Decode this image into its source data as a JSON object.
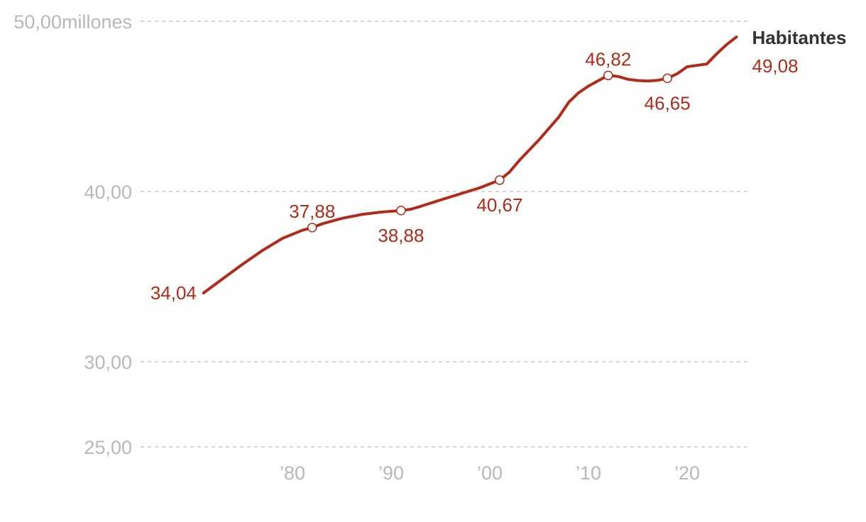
{
  "chart_data": {
    "type": "line",
    "title": "",
    "xlabel": "",
    "ylabel": "millones",
    "y_axis": {
      "ticks": [
        {
          "value": 25,
          "label": "25,00"
        },
        {
          "value": 30,
          "label": "30,00"
        },
        {
          "value": 40,
          "label": "40,00"
        },
        {
          "value": 50,
          "label": "50,00",
          "unit": "millones"
        }
      ],
      "grid": true
    },
    "x_axis": {
      "ticks": [
        {
          "value": 1980,
          "label": "’80"
        },
        {
          "value": 1990,
          "label": "’90"
        },
        {
          "value": 2000,
          "label": "’00"
        },
        {
          "value": 2010,
          "label": "’10"
        },
        {
          "value": 2020,
          "label": "’20"
        }
      ]
    },
    "series": [
      {
        "name": "Habitantes",
        "color": "#b22b1a",
        "x": [
          1971,
          1973,
          1975,
          1977,
          1979,
          1981,
          1982,
          1983,
          1985,
          1987,
          1989,
          1991,
          1992,
          1993,
          1995,
          1997,
          1999,
          2001,
          2002,
          2003,
          2005,
          2007,
          2008,
          2009,
          2010,
          2011,
          2012,
          2013,
          2014,
          2015,
          2016,
          2017,
          2018,
          2019,
          2020,
          2022,
          2023,
          2024,
          2025
        ],
        "values": [
          34.04,
          34.9,
          35.75,
          36.55,
          37.25,
          37.72,
          37.88,
          38.1,
          38.42,
          38.65,
          38.79,
          38.88,
          38.96,
          39.13,
          39.5,
          39.86,
          40.22,
          40.67,
          41.14,
          41.83,
          43.04,
          44.38,
          45.24,
          45.8,
          46.19,
          46.51,
          46.82,
          46.76,
          46.59,
          46.52,
          46.49,
          46.53,
          46.65,
          46.92,
          47.33,
          47.49,
          48.09,
          48.63,
          49.08
        ]
      }
    ],
    "annotations": [
      {
        "x": 1971,
        "value": 34.04,
        "label": "34,04",
        "marker": false,
        "position": "left"
      },
      {
        "x": 1982,
        "value": 37.88,
        "label": "37,88",
        "marker": true,
        "position": "above"
      },
      {
        "x": 1991,
        "value": 38.88,
        "label": "38,88",
        "marker": true,
        "position": "below"
      },
      {
        "x": 2001,
        "value": 40.67,
        "label": "40,67",
        "marker": true,
        "position": "below"
      },
      {
        "x": 2012,
        "value": 46.82,
        "label": "46,82",
        "marker": true,
        "position": "above"
      },
      {
        "x": 2018,
        "value": 46.65,
        "label": "46,65",
        "marker": true,
        "position": "below"
      },
      {
        "x": 2025,
        "value": 49.08,
        "label": "49,08",
        "marker": false,
        "position": "end"
      }
    ]
  }
}
